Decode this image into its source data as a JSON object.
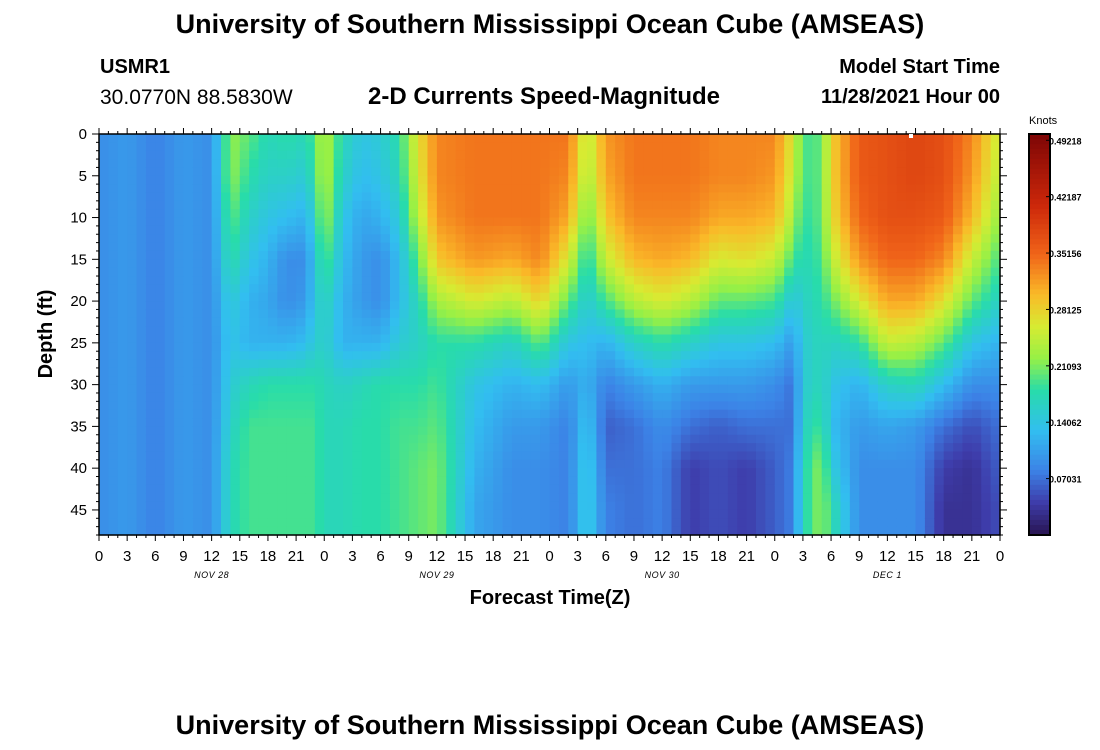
{
  "header": {
    "title": "University of Southern Mississippi Ocean Cube (AMSEAS)",
    "station_id": "USMR1",
    "station_coords": "30.0770N  88.5830W",
    "subtitle": "2-D Currents Speed-Magnitude",
    "start_label": "Model Start Time",
    "start_value": "11/28/2021 Hour 00"
  },
  "footer": {
    "title_repeat": "University of Southern Mississippi Ocean Cube (AMSEAS)"
  },
  "chart_data": {
    "type": "heatmap",
    "title": "2-D Currents Speed-Magnitude",
    "xlabel": "Forecast Time(Z)",
    "ylabel": "Depth (ft)",
    "x_hours_range": [
      0,
      96
    ],
    "x_ticks": [
      "0",
      "3",
      "6",
      "9",
      "12",
      "15",
      "18",
      "21",
      "0",
      "3",
      "6",
      "9",
      "12",
      "15",
      "18",
      "21",
      "0",
      "3",
      "6",
      "9",
      "12",
      "15",
      "18",
      "21",
      "0",
      "3",
      "6",
      "9",
      "12",
      "15",
      "18",
      "21",
      "0"
    ],
    "day_labels": [
      {
        "label": "NOV 28",
        "hour": 12
      },
      {
        "label": "NOV 29",
        "hour": 36
      },
      {
        "label": "NOV 30",
        "hour": 60
      },
      {
        "label": "DEC 1",
        "hour": 84
      }
    ],
    "y_range": [
      0,
      48
    ],
    "y_ticks": [
      0,
      5,
      10,
      15,
      20,
      25,
      30,
      35,
      40,
      45
    ],
    "colorbar": {
      "unit": "Knots",
      "range": [
        0.0,
        0.5
      ],
      "ticks": [
        "0.49218",
        "0.42187",
        "0.35156",
        "0.28125",
        "0.21093",
        "0.14062",
        "0.07031"
      ],
      "tick_values": [
        0.49218,
        0.42187,
        0.35156,
        0.28125,
        0.21093,
        0.14062,
        0.07031
      ]
    },
    "depth_levels_ft": [
      0,
      5,
      10,
      15,
      20,
      25,
      30,
      35,
      40,
      45,
      48
    ],
    "speed_profiles": [
      {
        "hour": 0,
        "values": [
          0.09,
          0.09,
          0.09,
          0.09,
          0.09,
          0.09,
          0.09,
          0.09,
          0.09,
          0.09,
          0.09
        ]
      },
      {
        "hour": 3,
        "values": [
          0.1,
          0.1,
          0.1,
          0.1,
          0.1,
          0.1,
          0.1,
          0.1,
          0.1,
          0.1,
          0.1
        ]
      },
      {
        "hour": 6,
        "values": [
          0.08,
          0.08,
          0.08,
          0.08,
          0.08,
          0.08,
          0.08,
          0.08,
          0.08,
          0.08,
          0.08
        ]
      },
      {
        "hour": 9,
        "values": [
          0.1,
          0.1,
          0.1,
          0.1,
          0.1,
          0.1,
          0.1,
          0.1,
          0.1,
          0.1,
          0.1
        ]
      },
      {
        "hour": 12,
        "values": [
          0.09,
          0.09,
          0.09,
          0.09,
          0.09,
          0.09,
          0.09,
          0.09,
          0.09,
          0.09,
          0.09
        ]
      },
      {
        "hour": 14,
        "values": [
          0.22,
          0.22,
          0.2,
          0.18,
          0.15,
          0.14,
          0.15,
          0.16,
          0.17,
          0.17,
          0.17
        ]
      },
      {
        "hour": 16,
        "values": [
          0.2,
          0.18,
          0.16,
          0.14,
          0.12,
          0.12,
          0.17,
          0.19,
          0.19,
          0.19,
          0.19
        ]
      },
      {
        "hour": 18,
        "values": [
          0.17,
          0.16,
          0.14,
          0.12,
          0.11,
          0.12,
          0.18,
          0.19,
          0.19,
          0.19,
          0.19
        ]
      },
      {
        "hour": 20,
        "values": [
          0.18,
          0.16,
          0.13,
          0.09,
          0.09,
          0.12,
          0.18,
          0.19,
          0.19,
          0.19,
          0.19
        ]
      },
      {
        "hour": 22,
        "values": [
          0.17,
          0.15,
          0.12,
          0.09,
          0.1,
          0.13,
          0.18,
          0.19,
          0.19,
          0.19,
          0.19
        ]
      },
      {
        "hour": 23,
        "values": [
          0.2,
          0.19,
          0.16,
          0.14,
          0.14,
          0.15,
          0.18,
          0.19,
          0.19,
          0.19,
          0.19
        ]
      },
      {
        "hour": 24,
        "values": [
          0.24,
          0.24,
          0.23,
          0.2,
          0.17,
          0.16,
          0.17,
          0.17,
          0.17,
          0.17,
          0.17
        ]
      },
      {
        "hour": 26,
        "values": [
          0.17,
          0.16,
          0.14,
          0.13,
          0.12,
          0.12,
          0.16,
          0.17,
          0.17,
          0.17,
          0.17
        ]
      },
      {
        "hour": 28,
        "values": [
          0.14,
          0.13,
          0.11,
          0.1,
          0.1,
          0.12,
          0.17,
          0.18,
          0.18,
          0.18,
          0.18
        ]
      },
      {
        "hour": 30,
        "values": [
          0.15,
          0.14,
          0.12,
          0.09,
          0.09,
          0.12,
          0.18,
          0.18,
          0.18,
          0.18,
          0.18
        ]
      },
      {
        "hour": 32,
        "values": [
          0.18,
          0.17,
          0.15,
          0.13,
          0.13,
          0.15,
          0.18,
          0.19,
          0.19,
          0.19,
          0.19
        ]
      },
      {
        "hour": 34,
        "values": [
          0.27,
          0.26,
          0.24,
          0.2,
          0.17,
          0.16,
          0.18,
          0.19,
          0.2,
          0.2,
          0.2
        ]
      },
      {
        "hour": 36,
        "values": [
          0.33,
          0.33,
          0.32,
          0.29,
          0.23,
          0.18,
          0.19,
          0.2,
          0.21,
          0.21,
          0.21
        ]
      },
      {
        "hour": 40,
        "values": [
          0.34,
          0.34,
          0.34,
          0.32,
          0.26,
          0.18,
          0.14,
          0.13,
          0.12,
          0.11,
          0.11
        ]
      },
      {
        "hour": 44,
        "values": [
          0.34,
          0.34,
          0.34,
          0.31,
          0.24,
          0.16,
          0.12,
          0.1,
          0.09,
          0.09,
          0.09
        ]
      },
      {
        "hour": 47,
        "values": [
          0.34,
          0.34,
          0.34,
          0.33,
          0.28,
          0.2,
          0.13,
          0.1,
          0.09,
          0.09,
          0.09
        ]
      },
      {
        "hour": 50,
        "values": [
          0.34,
          0.33,
          0.31,
          0.26,
          0.2,
          0.14,
          0.1,
          0.08,
          0.08,
          0.08,
          0.08
        ]
      },
      {
        "hour": 52,
        "values": [
          0.24,
          0.23,
          0.2,
          0.17,
          0.15,
          0.13,
          0.12,
          0.14,
          0.15,
          0.15,
          0.15
        ]
      },
      {
        "hour": 54,
        "values": [
          0.32,
          0.31,
          0.29,
          0.25,
          0.19,
          0.12,
          0.08,
          0.06,
          0.07,
          0.08,
          0.08
        ]
      },
      {
        "hour": 57,
        "values": [
          0.34,
          0.34,
          0.33,
          0.3,
          0.24,
          0.16,
          0.1,
          0.07,
          0.07,
          0.07,
          0.07
        ]
      },
      {
        "hour": 60,
        "values": [
          0.34,
          0.34,
          0.33,
          0.31,
          0.26,
          0.18,
          0.12,
          0.09,
          0.08,
          0.08,
          0.08
        ]
      },
      {
        "hour": 63,
        "values": [
          0.34,
          0.34,
          0.33,
          0.3,
          0.24,
          0.16,
          0.1,
          0.07,
          0.04,
          0.04,
          0.04
        ]
      },
      {
        "hour": 66,
        "values": [
          0.33,
          0.33,
          0.31,
          0.26,
          0.2,
          0.14,
          0.1,
          0.06,
          0.05,
          0.05,
          0.05
        ]
      },
      {
        "hour": 69,
        "values": [
          0.33,
          0.33,
          0.31,
          0.27,
          0.2,
          0.14,
          0.1,
          0.07,
          0.04,
          0.04,
          0.04
        ]
      },
      {
        "hour": 72,
        "values": [
          0.33,
          0.32,
          0.3,
          0.25,
          0.19,
          0.13,
          0.09,
          0.07,
          0.06,
          0.06,
          0.06
        ]
      },
      {
        "hour": 74,
        "values": [
          0.26,
          0.25,
          0.23,
          0.19,
          0.14,
          0.1,
          0.07,
          0.07,
          0.08,
          0.08,
          0.08
        ]
      },
      {
        "hour": 75,
        "values": [
          0.19,
          0.19,
          0.18,
          0.17,
          0.16,
          0.15,
          0.15,
          0.16,
          0.17,
          0.17,
          0.17
        ]
      },
      {
        "hour": 77,
        "values": [
          0.2,
          0.2,
          0.2,
          0.19,
          0.18,
          0.17,
          0.17,
          0.19,
          0.22,
          0.22,
          0.22
        ]
      },
      {
        "hour": 78,
        "values": [
          0.28,
          0.28,
          0.27,
          0.24,
          0.2,
          0.16,
          0.14,
          0.13,
          0.15,
          0.18,
          0.18
        ]
      },
      {
        "hour": 81,
        "values": [
          0.36,
          0.36,
          0.35,
          0.32,
          0.26,
          0.18,
          0.12,
          0.1,
          0.09,
          0.09,
          0.09
        ]
      },
      {
        "hour": 84,
        "values": [
          0.37,
          0.37,
          0.37,
          0.35,
          0.31,
          0.25,
          0.16,
          0.11,
          0.09,
          0.09,
          0.09
        ]
      },
      {
        "hour": 87,
        "values": [
          0.38,
          0.38,
          0.37,
          0.35,
          0.31,
          0.24,
          0.17,
          0.1,
          0.09,
          0.09,
          0.09
        ]
      },
      {
        "hour": 90,
        "values": [
          0.37,
          0.37,
          0.36,
          0.33,
          0.27,
          0.2,
          0.13,
          0.07,
          0.04,
          0.03,
          0.03
        ]
      },
      {
        "hour": 93,
        "values": [
          0.33,
          0.32,
          0.3,
          0.25,
          0.2,
          0.14,
          0.09,
          0.05,
          0.03,
          0.03,
          0.03
        ]
      },
      {
        "hour": 96,
        "values": [
          0.25,
          0.24,
          0.22,
          0.19,
          0.16,
          0.12,
          0.09,
          0.07,
          0.06,
          0.05,
          0.05
        ]
      }
    ]
  }
}
